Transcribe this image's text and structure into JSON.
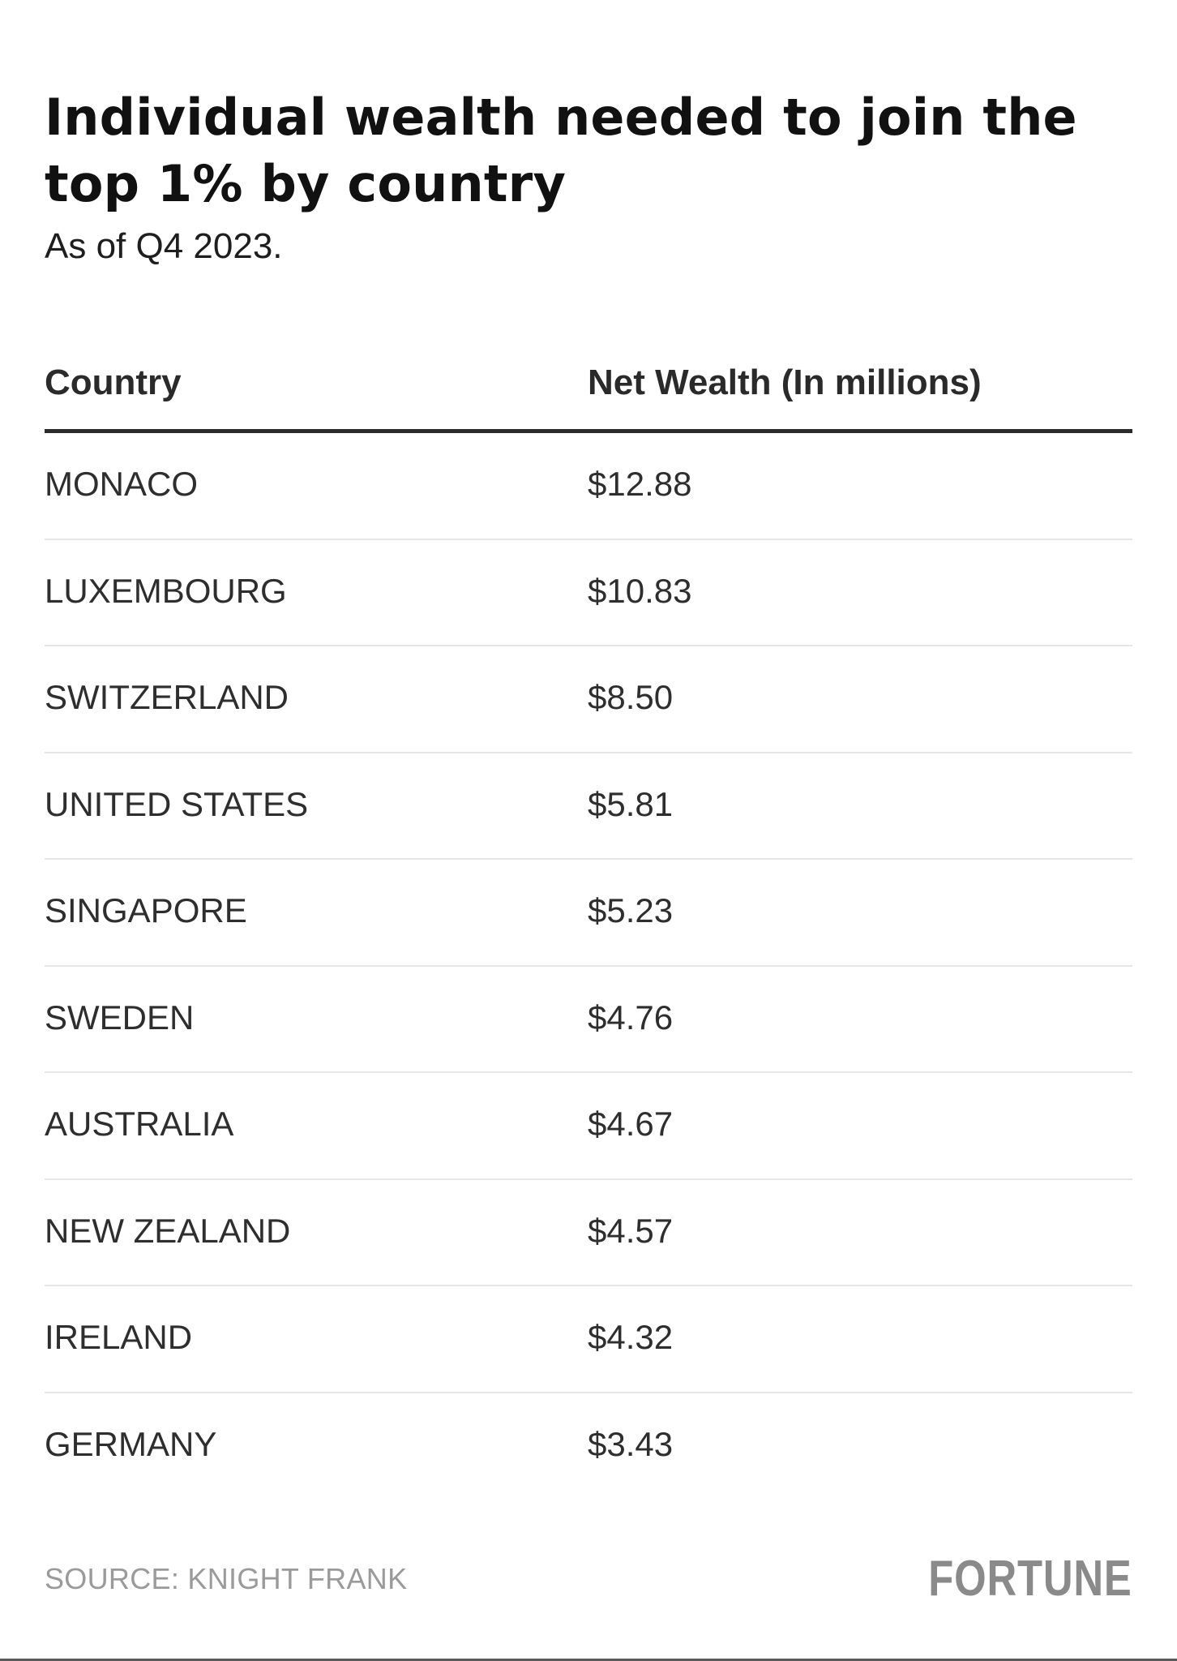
{
  "chart_data": {
    "type": "table",
    "title": "Individual wealth needed to join the top 1% by country",
    "subtitle": "As of Q4 2023.",
    "columns": [
      "Country",
      "Net Wealth (In millions)"
    ],
    "rows": [
      {
        "country": "MONACO",
        "value_label": "$12.88",
        "value": 12.88
      },
      {
        "country": "LUXEMBOURG",
        "value_label": "$10.83",
        "value": 10.83
      },
      {
        "country": "SWITZERLAND",
        "value_label": "$8.50",
        "value": 8.5
      },
      {
        "country": "UNITED STATES",
        "value_label": "$5.81",
        "value": 5.81
      },
      {
        "country": "SINGAPORE",
        "value_label": "$5.23",
        "value": 5.23
      },
      {
        "country": "SWEDEN",
        "value_label": "$4.76",
        "value": 4.76
      },
      {
        "country": "AUSTRALIA",
        "value_label": "$4.67",
        "value": 4.67
      },
      {
        "country": "NEW ZEALAND",
        "value_label": "$4.57",
        "value": 4.57
      },
      {
        "country": "IRELAND",
        "value_label": "$4.32",
        "value": 4.32
      },
      {
        "country": "GERMANY",
        "value_label": "$3.43",
        "value": 3.43
      }
    ],
    "source": "SOURCE: KNIGHT FRANK"
  },
  "branding": {
    "logo_text": "FORTUNE"
  }
}
